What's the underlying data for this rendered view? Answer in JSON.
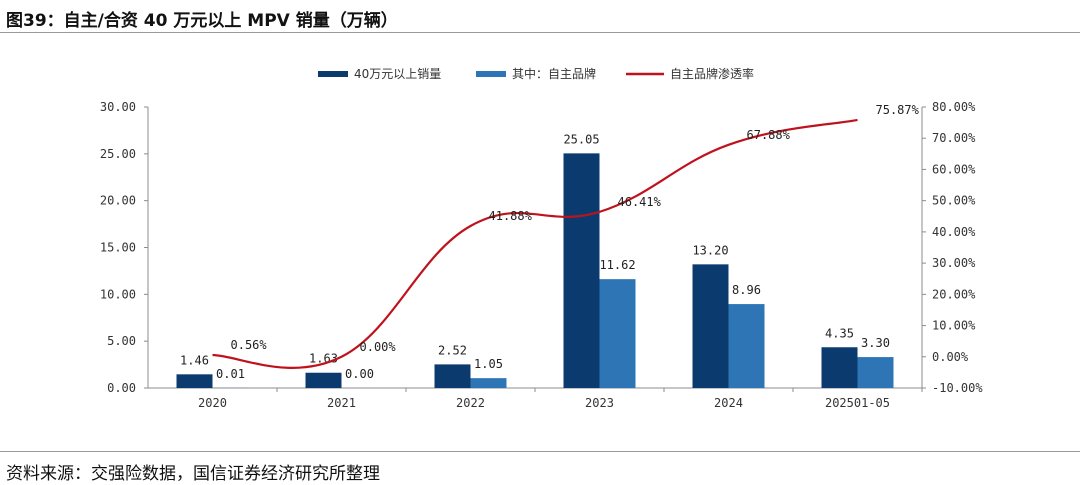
{
  "header": {
    "title": "图39：自主/合资 40 万元以上 MPV 销量（万辆）"
  },
  "footer": {
    "source": "资料来源：交强险数据，国信证券经济研究所整理"
  },
  "colors": {
    "bar_total": "#0b3b6e",
    "bar_domestic": "#2e75b6",
    "line": "#c0121c",
    "axis": "#8c8c8c"
  },
  "chart_data": {
    "type": "bar",
    "categories": [
      "2020",
      "2021",
      "2022",
      "2023",
      "2024",
      "202501-05"
    ],
    "series": [
      {
        "name": "40万元以上销量",
        "type": "bar",
        "axis": "left",
        "values": [
          1.46,
          1.63,
          2.52,
          25.05,
          13.2,
          4.35
        ],
        "labels": [
          "1.46",
          "1.63",
          "2.52",
          "25.05",
          "13.20",
          "4.35"
        ]
      },
      {
        "name": "其中：自主品牌",
        "type": "bar",
        "axis": "left",
        "values": [
          0.01,
          0.0,
          1.05,
          11.62,
          8.96,
          3.3
        ],
        "labels": [
          "0.01",
          "0.00",
          "1.05",
          "11.62",
          "8.96",
          "3.30"
        ]
      },
      {
        "name": "自主品牌渗透率",
        "type": "line",
        "axis": "right",
        "values": [
          0.56,
          0.0,
          41.88,
          46.41,
          67.88,
          75.87
        ],
        "labels": [
          "0.56%",
          "0.00%",
          "41.88%",
          "46.41%",
          "67.88%",
          "75.87%"
        ]
      }
    ],
    "y_left": {
      "min": 0,
      "max": 30,
      "ticks": [
        "0.00",
        "5.00",
        "10.00",
        "15.00",
        "20.00",
        "25.00",
        "30.00"
      ]
    },
    "y_right": {
      "min": -10,
      "max": 80,
      "ticks": [
        "-10.00%",
        "0.00%",
        "10.00%",
        "20.00%",
        "30.00%",
        "40.00%",
        "50.00%",
        "60.00%",
        "70.00%",
        "80.00%"
      ]
    },
    "legend_position": "top-center",
    "grid": false
  }
}
